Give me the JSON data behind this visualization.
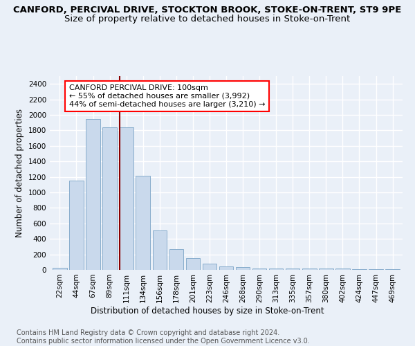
{
  "title": "CANFORD, PERCIVAL DRIVE, STOCKTON BROOK, STOKE-ON-TRENT, ST9 9PE",
  "subtitle": "Size of property relative to detached houses in Stoke-on-Trent",
  "xlabel": "Distribution of detached houses by size in Stoke-on-Trent",
  "ylabel": "Number of detached properties",
  "bar_labels": [
    "22sqm",
    "44sqm",
    "67sqm",
    "89sqm",
    "111sqm",
    "134sqm",
    "156sqm",
    "178sqm",
    "201sqm",
    "223sqm",
    "246sqm",
    "268sqm",
    "290sqm",
    "313sqm",
    "335sqm",
    "357sqm",
    "380sqm",
    "402sqm",
    "424sqm",
    "447sqm",
    "469sqm"
  ],
  "bar_values": [
    30,
    1150,
    1950,
    1840,
    1840,
    1210,
    510,
    265,
    150,
    80,
    45,
    40,
    20,
    20,
    20,
    15,
    15,
    20,
    5,
    5,
    5
  ],
  "bar_color": "#c9d9ec",
  "bar_edge_color": "#7ba4c7",
  "vline_x_index": 4,
  "vline_color": "#8b0000",
  "annotation_text": "CANFORD PERCIVAL DRIVE: 100sqm\n← 55% of detached houses are smaller (3,992)\n44% of semi-detached houses are larger (3,210) →",
  "annotation_box_color": "white",
  "annotation_box_edge": "red",
  "ylim": [
    0,
    2500
  ],
  "yticks": [
    0,
    200,
    400,
    600,
    800,
    1000,
    1200,
    1400,
    1600,
    1800,
    2000,
    2200,
    2400
  ],
  "footnote": "Contains HM Land Registry data © Crown copyright and database right 2024.\nContains public sector information licensed under the Open Government Licence v3.0.",
  "bg_color": "#eaf0f8",
  "grid_color": "white",
  "title_fontsize": 9.5,
  "subtitle_fontsize": 9.5,
  "label_fontsize": 8.5,
  "tick_fontsize": 7.5,
  "annotation_fontsize": 8,
  "footnote_fontsize": 7
}
